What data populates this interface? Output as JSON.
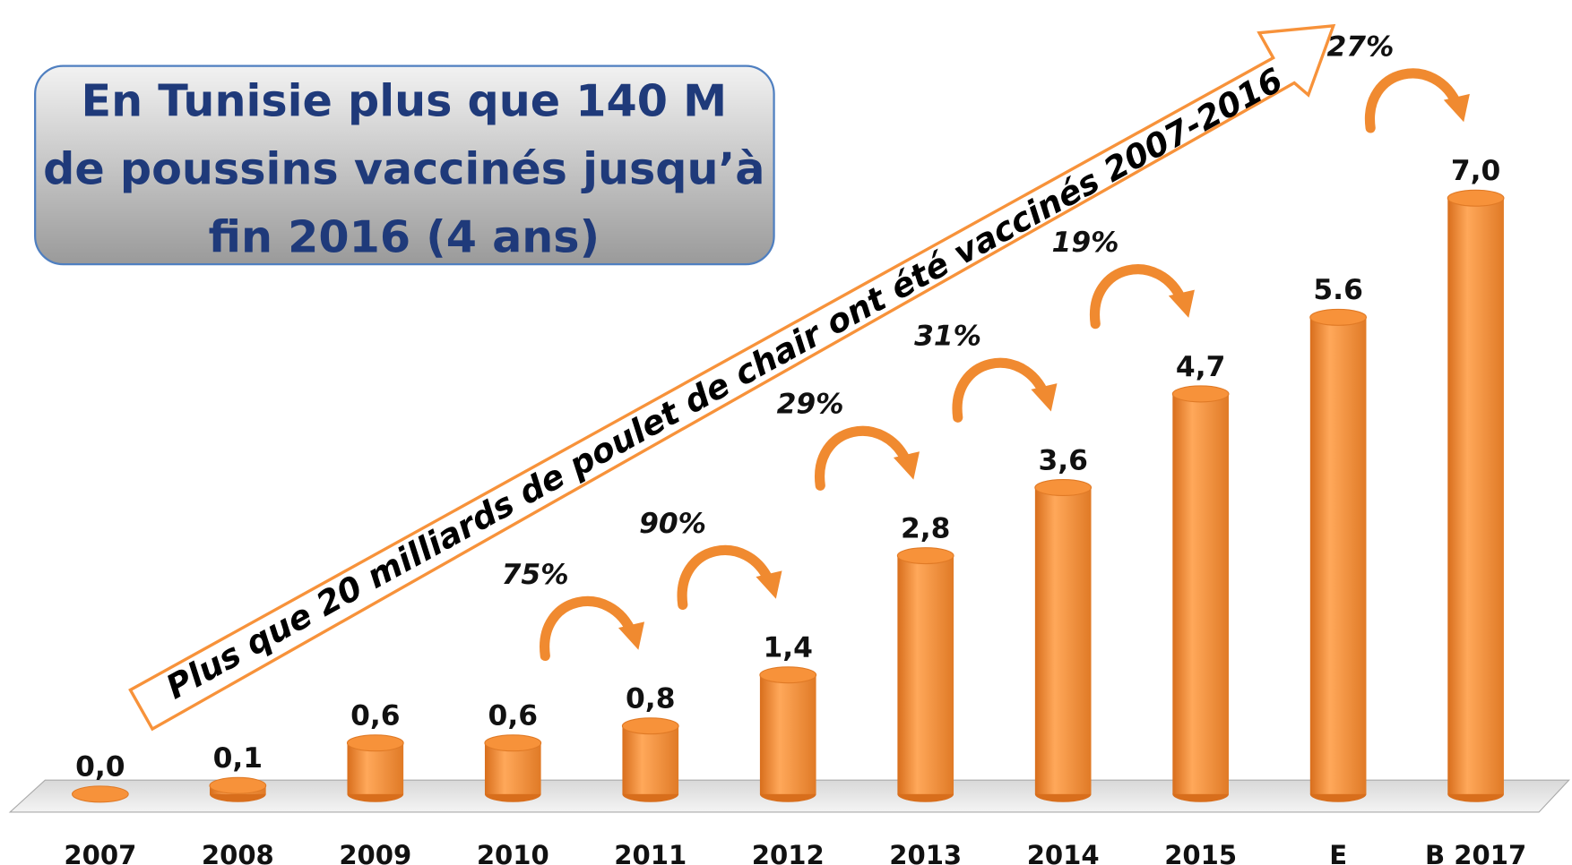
{
  "chart_data": {
    "type": "bar",
    "title": [
      "En Tunisie plus que 140 M",
      "de poussins vaccinés jusqu’à",
      "fin 2016 (4 ans)"
    ],
    "arrow_text": "Plus que  20 milliards de poulet de chair ont été vaccinés  2007-2016",
    "categories": [
      "2007",
      "2008",
      "2009",
      "2010",
      "2011",
      "2012",
      "2013",
      "2014",
      "2015",
      "E",
      "B 2017"
    ],
    "values": [
      0.0,
      0.1,
      0.6,
      0.6,
      0.8,
      1.4,
      2.8,
      3.6,
      4.7,
      5.6,
      7.0
    ],
    "value_labels": [
      "0,0",
      "0,1",
      "0,6",
      "0,6",
      "0,8",
      "1,4",
      "2,8",
      "3,6",
      "4,7",
      "5.6",
      "7,0"
    ],
    "annotations": [
      "75%",
      "90%",
      "29%",
      "31%",
      "19%",
      "27%"
    ],
    "color": "#f7923a"
  }
}
